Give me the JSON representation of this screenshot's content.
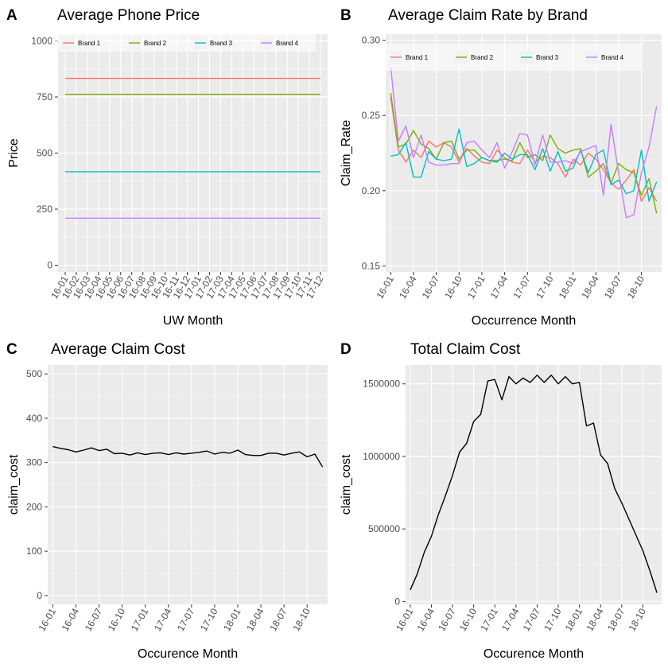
{
  "chart_data": [
    {
      "panel_letter": "A",
      "type": "line",
      "title": "Average Phone Price",
      "xlabel": "UW Month",
      "ylabel": "Price",
      "x": [
        "16-01",
        "16-02",
        "16-03",
        "16-04",
        "16-05",
        "16-06",
        "16-07",
        "16-08",
        "16-09",
        "16-10",
        "16-11",
        "16-12",
        "17-01",
        "17-02",
        "17-03",
        "17-04",
        "17-05",
        "17-06",
        "17-07",
        "17-08",
        "17-09",
        "17-10",
        "17-11",
        "17-12"
      ],
      "ylim": [
        -30,
        1030
      ],
      "yticks": [
        0,
        250,
        500,
        750,
        1000
      ],
      "grid": true,
      "legend_position": "top",
      "series": [
        {
          "name": "Brand 1",
          "color": "#F8766D",
          "values": [
            833,
            833,
            833,
            833,
            833,
            833,
            833,
            833,
            833,
            833,
            833,
            833,
            833,
            833,
            833,
            833,
            833,
            833,
            833,
            833,
            833,
            833,
            833,
            833
          ]
        },
        {
          "name": "Brand 2",
          "color": "#7CAE00",
          "values": [
            762,
            762,
            762,
            762,
            762,
            762,
            762,
            762,
            762,
            762,
            762,
            762,
            762,
            762,
            762,
            762,
            762,
            762,
            762,
            762,
            762,
            762,
            762,
            762
          ]
        },
        {
          "name": "Brand 3",
          "color": "#00BFC4",
          "values": [
            417,
            417,
            417,
            417,
            417,
            417,
            417,
            417,
            417,
            417,
            417,
            417,
            417,
            417,
            417,
            417,
            417,
            417,
            417,
            417,
            417,
            417,
            417,
            417
          ]
        },
        {
          "name": "Brand 4",
          "color": "#C77CFF",
          "values": [
            210,
            210,
            210,
            210,
            210,
            210,
            210,
            210,
            210,
            210,
            210,
            210,
            210,
            210,
            210,
            210,
            210,
            210,
            210,
            210,
            210,
            210,
            210,
            210
          ]
        }
      ]
    },
    {
      "panel_letter": "B",
      "type": "line",
      "title": "Average Claim Rate by Brand",
      "xlabel": "Occurrence Month",
      "ylabel": "Claim_Rate",
      "x": [
        "16-01",
        "16-02",
        "16-03",
        "16-04",
        "16-05",
        "16-06",
        "16-07",
        "16-08",
        "16-09",
        "16-10",
        "16-11",
        "16-12",
        "17-01",
        "17-02",
        "17-03",
        "17-04",
        "17-05",
        "17-06",
        "17-07",
        "17-08",
        "17-09",
        "17-10",
        "17-11",
        "17-12",
        "18-01",
        "18-02",
        "18-03",
        "18-04",
        "18-05",
        "18-06",
        "18-07",
        "18-08",
        "18-09",
        "18-10",
        "18-11",
        "18-12"
      ],
      "xticks": [
        "16-01",
        "16-04",
        "16-07",
        "16-10",
        "17-01",
        "17-04",
        "17-07",
        "17-10",
        "18-01",
        "18-04",
        "18-07",
        "18-10"
      ],
      "ylim": [
        0.146,
        0.304
      ],
      "yticks": [
        0.15,
        0.2,
        0.25,
        0.3
      ],
      "grid": true,
      "legend_position": "top",
      "series": [
        {
          "name": "Brand 1",
          "color": "#F8766D",
          "values": [
            0.262,
            0.227,
            0.219,
            0.227,
            0.222,
            0.233,
            0.229,
            0.232,
            0.229,
            0.219,
            0.228,
            0.223,
            0.219,
            0.218,
            0.227,
            0.222,
            0.219,
            0.218,
            0.227,
            0.219,
            0.223,
            0.222,
            0.218,
            0.209,
            0.221,
            0.217,
            0.225,
            0.221,
            0.214,
            0.205,
            0.201,
            0.207,
            0.214,
            0.193,
            0.202,
            0.193
          ]
        },
        {
          "name": "Brand 2",
          "color": "#7CAE00",
          "values": [
            0.265,
            0.229,
            0.231,
            0.24,
            0.231,
            0.228,
            0.221,
            0.232,
            0.233,
            0.221,
            0.227,
            0.227,
            0.222,
            0.22,
            0.22,
            0.221,
            0.22,
            0.232,
            0.222,
            0.224,
            0.22,
            0.237,
            0.228,
            0.225,
            0.227,
            0.228,
            0.209,
            0.213,
            0.218,
            0.205,
            0.218,
            0.214,
            0.212,
            0.197,
            0.208,
            0.185
          ]
        },
        {
          "name": "Brand 3",
          "color": "#00BFC4",
          "values": [
            0.223,
            0.224,
            0.232,
            0.209,
            0.209,
            0.226,
            0.221,
            0.22,
            0.221,
            0.241,
            0.216,
            0.218,
            0.222,
            0.22,
            0.219,
            0.225,
            0.221,
            0.224,
            0.224,
            0.214,
            0.228,
            0.213,
            0.226,
            0.213,
            0.215,
            0.227,
            0.212,
            0.224,
            0.227,
            0.204,
            0.207,
            0.198,
            0.2,
            0.227,
            0.193,
            0.206
          ]
        },
        {
          "name": "Brand 4",
          "color": "#C77CFF",
          "values": [
            0.282,
            0.233,
            0.243,
            0.222,
            0.237,
            0.219,
            0.217,
            0.217,
            0.218,
            0.218,
            0.232,
            0.233,
            0.227,
            0.222,
            0.232,
            0.215,
            0.226,
            0.238,
            0.237,
            0.217,
            0.237,
            0.219,
            0.219,
            0.22,
            0.218,
            0.226,
            0.228,
            0.23,
            0.197,
            0.244,
            0.212,
            0.182,
            0.184,
            0.212,
            0.229,
            0.256
          ]
        }
      ]
    },
    {
      "panel_letter": "C",
      "type": "line",
      "title": "Average Claim Cost",
      "xlabel": "Occurence Month",
      "ylabel": "claim_cost",
      "x": [
        "16-01",
        "16-02",
        "16-03",
        "16-04",
        "16-05",
        "16-06",
        "16-07",
        "16-08",
        "16-09",
        "16-10",
        "16-11",
        "16-12",
        "17-01",
        "17-02",
        "17-03",
        "17-04",
        "17-05",
        "17-06",
        "17-07",
        "17-08",
        "17-09",
        "17-10",
        "17-11",
        "17-12",
        "18-01",
        "18-02",
        "18-03",
        "18-04",
        "18-05",
        "18-06",
        "18-07",
        "18-08",
        "18-09",
        "18-10",
        "18-11",
        "18-12"
      ],
      "xticks": [
        "16-01",
        "16-04",
        "16-07",
        "16-10",
        "17-01",
        "17-04",
        "17-07",
        "17-10",
        "18-01",
        "18-04",
        "18-07",
        "18-10"
      ],
      "ylim": [
        -20,
        520
      ],
      "yticks": [
        0,
        100,
        200,
        300,
        400,
        500
      ],
      "grid": true,
      "series": [
        {
          "color": "#000000",
          "values": [
            336,
            332,
            329,
            324,
            328,
            333,
            327,
            330,
            320,
            321,
            317,
            322,
            318,
            321,
            322,
            318,
            322,
            319,
            321,
            323,
            326,
            319,
            323,
            321,
            328,
            318,
            316,
            316,
            321,
            321,
            317,
            321,
            324,
            313,
            319,
            290
          ]
        }
      ]
    },
    {
      "panel_letter": "D",
      "type": "line",
      "title": "Total Claim Cost",
      "xlabel": "Occurence Month",
      "ylabel": "claim_cost",
      "x": [
        "16-01",
        "16-02",
        "16-03",
        "16-04",
        "16-05",
        "16-06",
        "16-07",
        "16-08",
        "16-09",
        "16-10",
        "16-11",
        "16-12",
        "17-01",
        "17-02",
        "17-03",
        "17-04",
        "17-05",
        "17-06",
        "17-07",
        "17-08",
        "17-09",
        "17-10",
        "17-11",
        "17-12",
        "18-01",
        "18-02",
        "18-03",
        "18-04",
        "18-05",
        "18-06",
        "18-07",
        "18-08",
        "18-09",
        "18-10",
        "18-11",
        "18-12"
      ],
      "xticks": [
        "16-01",
        "16-04",
        "16-07",
        "16-10",
        "17-01",
        "17-04",
        "17-07",
        "17-10",
        "18-01",
        "18-04",
        "18-07",
        "18-10"
      ],
      "ylim": [
        -20000,
        1630000
      ],
      "yticks": [
        0,
        500000,
        1000000,
        1500000
      ],
      "grid": true,
      "series": [
        {
          "color": "#000000",
          "values": [
            80000,
            190000,
            340000,
            450000,
            600000,
            730000,
            870000,
            1030000,
            1090000,
            1240000,
            1290000,
            1520000,
            1530000,
            1390000,
            1550000,
            1500000,
            1540000,
            1510000,
            1560000,
            1510000,
            1560000,
            1500000,
            1550000,
            1500000,
            1510000,
            1210000,
            1230000,
            1010000,
            950000,
            780000,
            680000,
            570000,
            460000,
            350000,
            210000,
            60000
          ]
        }
      ]
    }
  ]
}
